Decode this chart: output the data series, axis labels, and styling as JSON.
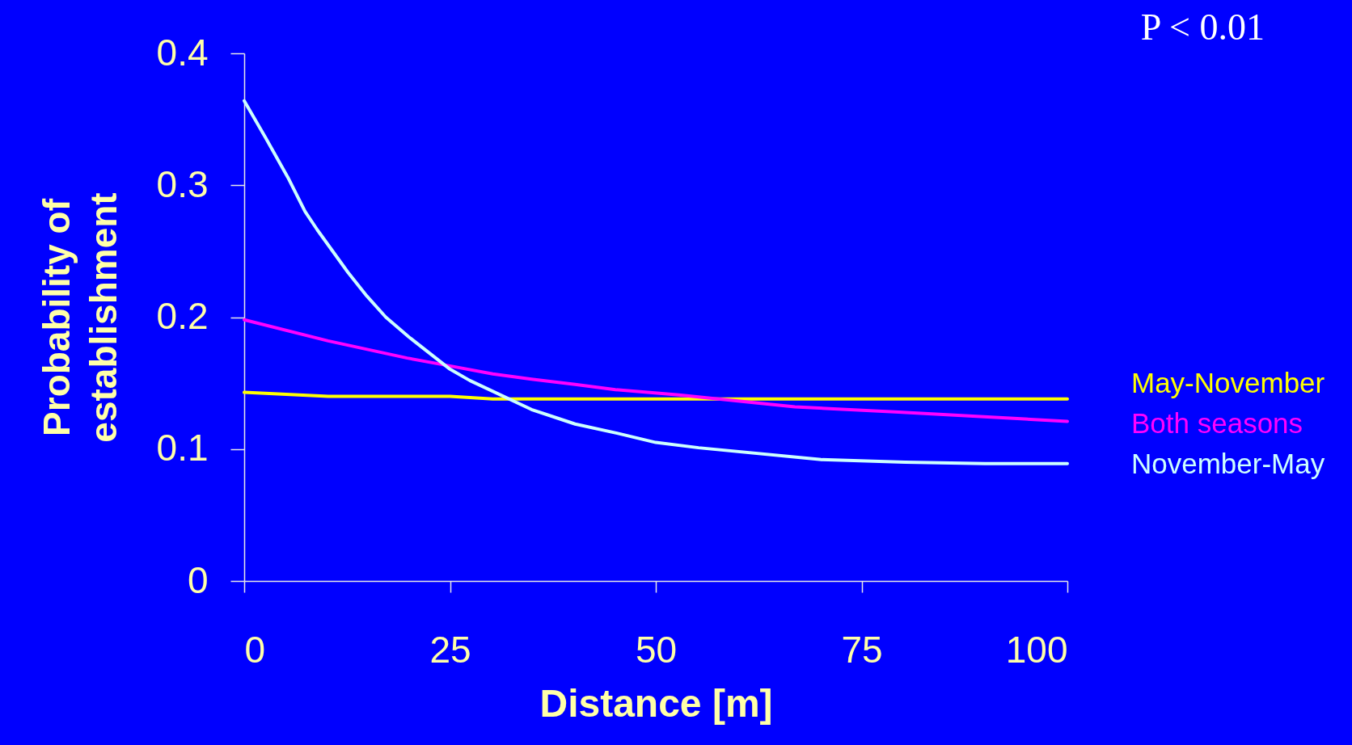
{
  "chart_data": {
    "type": "line",
    "title": "P < 0.01",
    "xlabel": "Distance [m]",
    "ylabel": "Probability of establishment",
    "xlim": [
      0,
      100
    ],
    "xticks": [
      0,
      25,
      50,
      75,
      100
    ],
    "ylim": [
      0,
      0.4
    ],
    "yticks": [
      0,
      0.1,
      0.2,
      0.3,
      0.4
    ],
    "grid": false,
    "legend": "right",
    "marker": "none",
    "line_style": "solid",
    "series": [
      {
        "name": "May-November",
        "color": "#ffff00",
        "x": [
          0,
          10.2,
          25,
          30.2,
          50,
          75,
          100
        ],
        "values": [
          0.143,
          0.14,
          0.14,
          0.138,
          0.138,
          0.138,
          0.138
        ]
      },
      {
        "name": "Both seasons",
        "color": "#ff00ff",
        "x": [
          0,
          10.2,
          19.8,
          25,
          30.2,
          34.9,
          40.2,
          45.1,
          52.8,
          66.9,
          79.5,
          100
        ],
        "values": [
          0.198,
          0.182,
          0.169,
          0.163,
          0.157,
          0.153,
          0.149,
          0.145,
          0.141,
          0.132,
          0.128,
          0.121
        ]
      },
      {
        "name": "November-May",
        "color": "#ccffff",
        "x": [
          0,
          2.6,
          5.3,
          7.4,
          8.9,
          12.6,
          14.9,
          17.2,
          20,
          24.9,
          27.4,
          34.9,
          40.2,
          45.3,
          50,
          55.2,
          70.1,
          80.3,
          90,
          100
        ],
        "values": [
          0.364,
          0.336,
          0.306,
          0.28,
          0.266,
          0.234,
          0.216,
          0.2,
          0.185,
          0.161,
          0.152,
          0.13,
          0.119,
          0.112,
          0.105,
          0.101,
          0.092,
          0.09,
          0.089,
          0.089
        ]
      }
    ]
  }
}
